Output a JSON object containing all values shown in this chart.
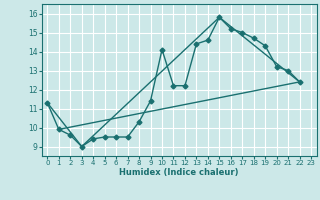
{
  "xlabel": "Humidex (Indice chaleur)",
  "bg_color": "#cce8e8",
  "grid_color": "#ffffff",
  "line_color": "#1a7070",
  "xlim": [
    -0.5,
    23.5
  ],
  "ylim": [
    8.5,
    16.5
  ],
  "xticks": [
    0,
    1,
    2,
    3,
    4,
    5,
    6,
    7,
    8,
    9,
    10,
    11,
    12,
    13,
    14,
    15,
    16,
    17,
    18,
    19,
    20,
    21,
    22,
    23
  ],
  "yticks": [
    9,
    10,
    11,
    12,
    13,
    14,
    15,
    16
  ],
  "line1_x": [
    0,
    1,
    2,
    3,
    4,
    5,
    6,
    7,
    8,
    9,
    10,
    11,
    12,
    13,
    14,
    15,
    16,
    17,
    18,
    19,
    20,
    21,
    22
  ],
  "line1_y": [
    11.3,
    9.9,
    9.6,
    9.0,
    9.4,
    9.5,
    9.5,
    9.5,
    10.3,
    11.4,
    14.1,
    12.2,
    12.2,
    14.4,
    14.6,
    15.8,
    15.2,
    15.0,
    14.7,
    14.3,
    13.2,
    13.0,
    12.4
  ],
  "line2_x": [
    0,
    3,
    15,
    22
  ],
  "line2_y": [
    11.3,
    9.0,
    15.8,
    12.4
  ],
  "line3_x": [
    1,
    22
  ],
  "line3_y": [
    9.9,
    12.4
  ]
}
